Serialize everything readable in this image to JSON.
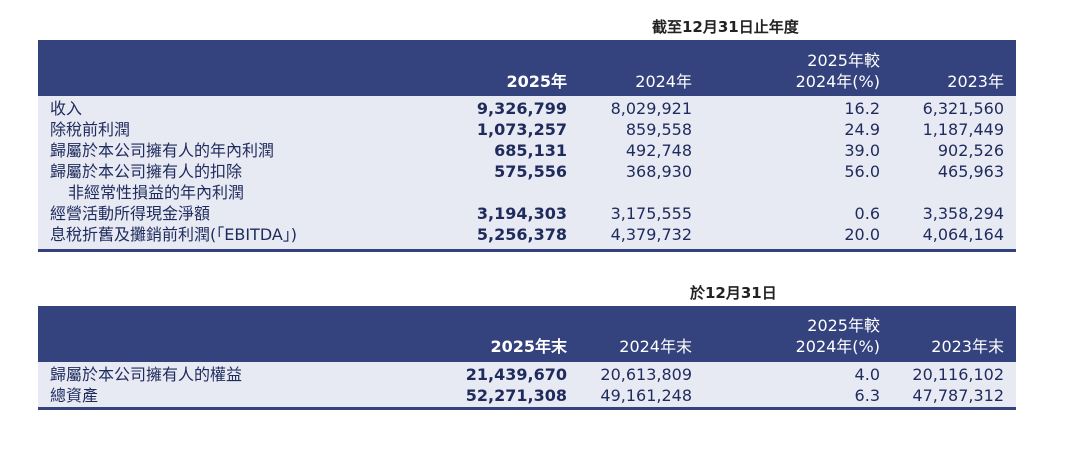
{
  "table1": {
    "caption": "截至12月31日止年度",
    "headers": {
      "col1": "2025年",
      "col2": "2024年",
      "col3_line1": "2025年較",
      "col3_line2": "2024年(%)",
      "col4": "2023年"
    },
    "rows": [
      {
        "label": "收入",
        "label2": "",
        "v1": "9,326,799",
        "v2": "8,029,921",
        "v3": "16.2",
        "v4": "6,321,560"
      },
      {
        "label": "除稅前利潤",
        "label2": "",
        "v1": "1,073,257",
        "v2": "859,558",
        "v3": "24.9",
        "v4": "1,187,449"
      },
      {
        "label": "歸屬於本公司擁有人的年內利潤",
        "label2": "",
        "v1": "685,131",
        "v2": "492,748",
        "v3": "39.0",
        "v4": "902,526"
      },
      {
        "label": "歸屬於本公司擁有人的扣除",
        "label2": "非經常性損益的年內利潤",
        "v1": "575,556",
        "v2": "368,930",
        "v3": "56.0",
        "v4": "465,963"
      },
      {
        "label": "經營活動所得現金淨額",
        "label2": "",
        "v1": "3,194,303",
        "v2": "3,175,555",
        "v3": "0.6",
        "v4": "3,358,294"
      },
      {
        "label": "息稅折舊及攤銷前利潤(「EBITDA」)",
        "label2": "",
        "v1": "5,256,378",
        "v2": "4,379,732",
        "v3": "20.0",
        "v4": "4,064,164"
      }
    ]
  },
  "table2": {
    "caption": "於12月31日",
    "headers": {
      "col1": "2025年末",
      "col2": "2024年末",
      "col3_line1": "2025年較",
      "col3_line2": "2024年(%)",
      "col4": "2023年末"
    },
    "rows": [
      {
        "label": "歸屬於本公司擁有人的權益",
        "v1": "21,439,670",
        "v2": "20,613,809",
        "v3": "4.0",
        "v4": "20,116,102"
      },
      {
        "label": "總資產",
        "v1": "52,271,308",
        "v2": "49,161,248",
        "v3": "6.3",
        "v4": "47,787,312"
      }
    ]
  },
  "colors": {
    "header_bg": "#34427e",
    "body_bg": "#e7e9f3",
    "text": "#1f2b5c"
  }
}
